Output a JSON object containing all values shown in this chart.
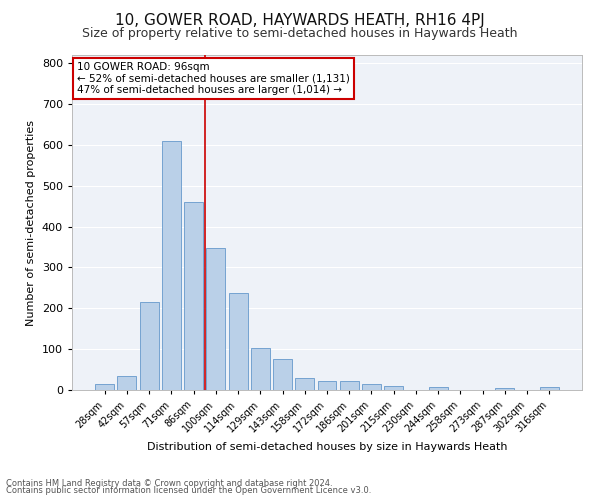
{
  "title": "10, GOWER ROAD, HAYWARDS HEATH, RH16 4PJ",
  "subtitle": "Size of property relative to semi-detached houses in Haywards Heath",
  "xlabel": "Distribution of semi-detached houses by size in Haywards Heath",
  "ylabel": "Number of semi-detached properties",
  "categories": [
    "28sqm",
    "42sqm",
    "57sqm",
    "71sqm",
    "86sqm",
    "100sqm",
    "114sqm",
    "129sqm",
    "143sqm",
    "158sqm",
    "172sqm",
    "186sqm",
    "201sqm",
    "215sqm",
    "230sqm",
    "244sqm",
    "258sqm",
    "273sqm",
    "287sqm",
    "302sqm",
    "316sqm"
  ],
  "values": [
    15,
    35,
    215,
    610,
    460,
    348,
    237,
    102,
    77,
    30,
    22,
    21,
    14,
    10,
    0,
    7,
    0,
    0,
    5,
    0,
    7
  ],
  "bar_color": "#bad0e8",
  "bar_edge_color": "#6699cc",
  "marker_line_color": "#cc0000",
  "annotation_text": "10 GOWER ROAD: 96sqm\n← 52% of semi-detached houses are smaller (1,131)\n47% of semi-detached houses are larger (1,014) →",
  "annotation_box_color": "#ffffff",
  "annotation_box_edge": "#cc0000",
  "footer1": "Contains HM Land Registry data © Crown copyright and database right 2024.",
  "footer2": "Contains public sector information licensed under the Open Government Licence v3.0.",
  "ylim": [
    0,
    820
  ],
  "yticks": [
    0,
    100,
    200,
    300,
    400,
    500,
    600,
    700,
    800
  ],
  "bg_color": "#eef2f8",
  "grid_color": "#ffffff",
  "title_fontsize": 11,
  "subtitle_fontsize": 9,
  "red_line_x": 4.5
}
